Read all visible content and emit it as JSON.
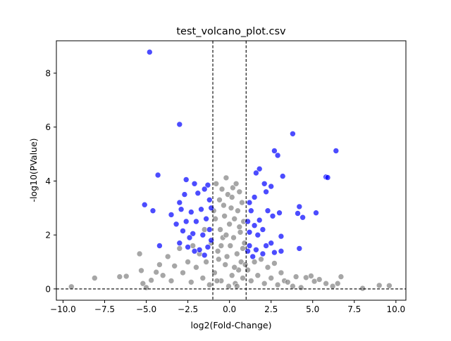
{
  "chart_data": {
    "type": "scatter",
    "title": "test_volcano_plot.csv",
    "xlabel": "log2(Fold-Change)",
    "ylabel": "-log10(PValue)",
    "xlim": [
      -10.4,
      10.6
    ],
    "ylim": [
      -0.42,
      9.2
    ],
    "xticks": [
      -10.0,
      -7.5,
      -5.0,
      -2.5,
      0.0,
      2.5,
      5.0,
      7.5,
      10.0
    ],
    "xtick_labels": [
      "−10.0",
      "−7.5",
      "−5.0",
      "−2.5",
      "0.0",
      "2.5",
      "5.0",
      "7.5",
      "10.0"
    ],
    "yticks": [
      0,
      2,
      4,
      6,
      8
    ],
    "ytick_labels": [
      "0",
      "2",
      "4",
      "6",
      "8"
    ],
    "grid": false,
    "legend": "none",
    "reference_lines": {
      "vertical_x": [
        -1,
        1
      ],
      "horizontal_y": [
        0
      ]
    },
    "colors": {
      "significant": "#0000ff",
      "not_significant": "#808080",
      "reference_line": "#000000"
    },
    "series": [
      {
        "color": "#0000ff",
        "points": [
          [
            -4.8,
            8.78
          ],
          [
            -3.0,
            6.1
          ],
          [
            3.8,
            5.75
          ],
          [
            2.7,
            5.12
          ],
          [
            2.9,
            4.95
          ],
          [
            6.4,
            5.12
          ],
          [
            -4.3,
            4.22
          ],
          [
            5.8,
            4.15
          ],
          [
            5.9,
            4.13
          ],
          [
            3.2,
            4.18
          ],
          [
            1.8,
            4.45
          ],
          [
            1.6,
            4.3
          ],
          [
            -2.6,
            4.05
          ],
          [
            -2.1,
            3.9
          ],
          [
            -1.3,
            3.85
          ],
          [
            -1.5,
            3.7
          ],
          [
            2.1,
            3.9
          ],
          [
            2.5,
            3.8
          ],
          [
            -5.1,
            3.12
          ],
          [
            -4.6,
            2.9
          ],
          [
            -3.0,
            3.2
          ],
          [
            -2.7,
            3.5
          ],
          [
            -1.9,
            3.55
          ],
          [
            -1.2,
            3.3
          ],
          [
            2.2,
            3.6
          ],
          [
            1.5,
            3.4
          ],
          [
            1.2,
            3.2
          ],
          [
            4.2,
            3.05
          ],
          [
            3.0,
            2.82
          ],
          [
            5.2,
            2.82
          ],
          [
            4.1,
            2.8
          ],
          [
            4.4,
            2.65
          ],
          [
            -3.5,
            2.75
          ],
          [
            -2.9,
            2.95
          ],
          [
            -2.3,
            2.85
          ],
          [
            -1.7,
            2.95
          ],
          [
            -1.1,
            3.0
          ],
          [
            1.3,
            2.9
          ],
          [
            1.8,
            2.55
          ],
          [
            2.3,
            2.9
          ],
          [
            2.6,
            2.7
          ],
          [
            -3.2,
            2.4
          ],
          [
            -2.6,
            2.5
          ],
          [
            -2.0,
            2.5
          ],
          [
            -1.4,
            2.6
          ],
          [
            -1.2,
            2.2
          ],
          [
            1.1,
            2.5
          ],
          [
            1.5,
            2.35
          ],
          [
            2.0,
            2.2
          ],
          [
            -2.8,
            2.15
          ],
          [
            -2.2,
            2.05
          ],
          [
            -1.6,
            2.0
          ],
          [
            1.2,
            2.1
          ],
          [
            1.7,
            2.0
          ],
          [
            3.1,
            1.95
          ],
          [
            -4.2,
            1.6
          ],
          [
            -3.0,
            1.7
          ],
          [
            -2.5,
            1.55
          ],
          [
            -1.8,
            1.45
          ],
          [
            -1.3,
            1.55
          ],
          [
            1.2,
            1.6
          ],
          [
            1.6,
            1.45
          ],
          [
            2.2,
            1.6
          ],
          [
            2.7,
            1.35
          ],
          [
            3.1,
            1.4
          ],
          [
            4.2,
            1.5
          ],
          [
            -2.1,
            1.4
          ],
          [
            -1.1,
            1.8
          ],
          [
            1.1,
            1.4
          ],
          [
            2.0,
            1.3
          ],
          [
            2.5,
            1.7
          ],
          [
            -2.4,
            1.9
          ],
          [
            1.4,
            1.2
          ],
          [
            -1.5,
            1.25
          ]
        ]
      },
      {
        "color": "#808080",
        "points": [
          [
            -9.5,
            0.08
          ],
          [
            -8.1,
            0.4
          ],
          [
            -6.6,
            0.45
          ],
          [
            -6.2,
            0.47
          ],
          [
            -5.4,
            1.3
          ],
          [
            -5.3,
            0.68
          ],
          [
            -5.2,
            0.2
          ],
          [
            -5.0,
            0.05
          ],
          [
            -4.7,
            0.32
          ],
          [
            -4.4,
            0.62
          ],
          [
            -4.2,
            0.9
          ],
          [
            -4.0,
            0.5
          ],
          [
            -3.7,
            1.2
          ],
          [
            -3.5,
            0.3
          ],
          [
            -3.3,
            0.85
          ],
          [
            -3.0,
            1.5
          ],
          [
            -2.8,
            0.6
          ],
          [
            -2.5,
            1.0
          ],
          [
            -2.3,
            0.25
          ],
          [
            -2.2,
            1.6
          ],
          [
            -2.0,
            0.8
          ],
          [
            -1.8,
            1.3
          ],
          [
            -1.6,
            0.4
          ],
          [
            -1.5,
            2.2
          ],
          [
            -1.4,
            1.0
          ],
          [
            -1.2,
            0.15
          ],
          [
            -1.1,
            1.7
          ],
          [
            -0.95,
            2.9
          ],
          [
            -0.9,
            0.6
          ],
          [
            -0.8,
            3.9
          ],
          [
            -0.7,
            1.4
          ],
          [
            -0.6,
            3.3
          ],
          [
            -0.55,
            2.2
          ],
          [
            -0.5,
            0.3
          ],
          [
            -0.45,
            3.7
          ],
          [
            -0.4,
            1.9
          ],
          [
            -0.3,
            2.7
          ],
          [
            -0.25,
            0.9
          ],
          [
            -0.2,
            4.12
          ],
          [
            -0.15,
            1.2
          ],
          [
            -0.1,
            3.5
          ],
          [
            -0.05,
            0.1
          ],
          [
            0.0,
            2.4
          ],
          [
            0.05,
            1.6
          ],
          [
            0.1,
            3.0
          ],
          [
            0.15,
            0.5
          ],
          [
            0.2,
            3.75
          ],
          [
            0.25,
            1.9
          ],
          [
            0.3,
            2.6
          ],
          [
            0.35,
            0.2
          ],
          [
            0.4,
            3.9
          ],
          [
            0.45,
            1.3
          ],
          [
            0.5,
            2.9
          ],
          [
            0.55,
            0.7
          ],
          [
            0.6,
            3.6
          ],
          [
            0.65,
            2.1
          ],
          [
            0.7,
            1.0
          ],
          [
            0.75,
            3.2
          ],
          [
            0.8,
            0.4
          ],
          [
            0.85,
            2.5
          ],
          [
            0.9,
            1.7
          ],
          [
            0.95,
            0.9
          ],
          [
            1.1,
            0.7
          ],
          [
            1.3,
            0.3
          ],
          [
            1.5,
            1.0
          ],
          [
            1.7,
            0.5
          ],
          [
            1.9,
            1.1
          ],
          [
            2.1,
            0.2
          ],
          [
            2.3,
            0.8
          ],
          [
            2.5,
            0.4
          ],
          [
            2.7,
            0.95
          ],
          [
            2.9,
            0.15
          ],
          [
            3.1,
            0.6
          ],
          [
            3.3,
            0.3
          ],
          [
            3.5,
            0.25
          ],
          [
            3.8,
            0.1
          ],
          [
            4.0,
            0.45
          ],
          [
            4.3,
            0.05
          ],
          [
            4.6,
            0.42
          ],
          [
            4.9,
            0.48
          ],
          [
            5.1,
            0.28
          ],
          [
            5.4,
            0.35
          ],
          [
            5.8,
            0.2
          ],
          [
            6.2,
            0.1
          ],
          [
            6.5,
            0.2
          ],
          [
            6.7,
            0.45
          ],
          [
            8.0,
            0.02
          ],
          [
            9.0,
            0.13
          ],
          [
            9.6,
            0.12
          ],
          [
            -0.85,
            2.6
          ],
          [
            -0.65,
            1.1
          ],
          [
            -0.35,
            3.1
          ],
          [
            0.3,
            0.8
          ],
          [
            0.6,
            2.3
          ],
          [
            -0.75,
            0.3
          ],
          [
            0.15,
            3.4
          ],
          [
            -0.5,
            1.6
          ],
          [
            0.8,
            1.5
          ],
          [
            -0.2,
            2.0
          ],
          [
            0.45,
            0.1
          ]
        ]
      }
    ]
  }
}
